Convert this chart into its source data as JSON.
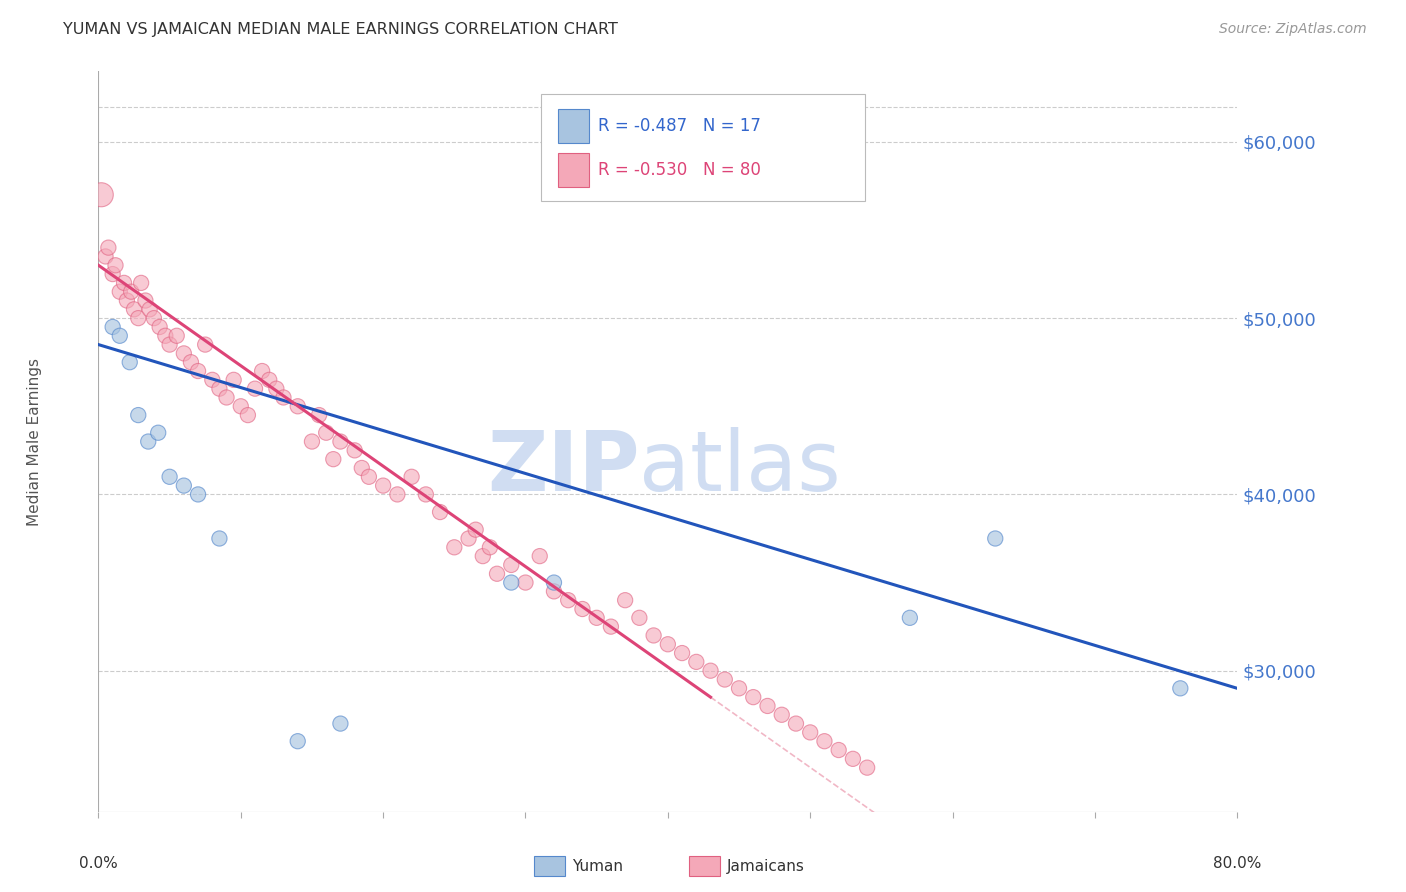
{
  "title": "YUMAN VS JAMAICAN MEDIAN MALE EARNINGS CORRELATION CHART",
  "source": "Source: ZipAtlas.com",
  "ylabel": "Median Male Earnings",
  "yticks": [
    30000,
    40000,
    50000,
    60000
  ],
  "ytick_labels": [
    "$30,000",
    "$40,000",
    "$50,000",
    "$60,000"
  ],
  "xlim": [
    0.0,
    80.0
  ],
  "ylim": [
    22000,
    64000
  ],
  "yuman_R": "-0.487",
  "yuman_N": "17",
  "jamaican_R": "-0.530",
  "jamaican_N": "80",
  "blue_color": "#A8C4E0",
  "pink_color": "#F4A8B8",
  "blue_edge_color": "#5588CC",
  "pink_edge_color": "#E06080",
  "blue_line_color": "#2255BB",
  "pink_line_color": "#DD4477",
  "watermark_zip_color": "#C8D8F0",
  "watermark_atlas_color": "#C8D8F0",
  "yuman_x": [
    1.0,
    1.5,
    2.2,
    2.8,
    3.5,
    4.2,
    5.0,
    6.0,
    7.0,
    8.5,
    14.0,
    17.0,
    29.0,
    32.0,
    57.0,
    63.0,
    76.0
  ],
  "yuman_y": [
    49500,
    49000,
    47500,
    44500,
    43000,
    43500,
    41000,
    40500,
    40000,
    37500,
    26000,
    27000,
    35000,
    35000,
    33000,
    37500,
    29000
  ],
  "yuman_sizes": [
    120,
    120,
    120,
    120,
    120,
    120,
    120,
    120,
    120,
    120,
    120,
    120,
    120,
    120,
    120,
    120,
    120
  ],
  "jamaican_x": [
    0.2,
    0.5,
    0.7,
    1.0,
    1.2,
    1.5,
    1.8,
    2.0,
    2.3,
    2.5,
    2.8,
    3.0,
    3.3,
    3.6,
    3.9,
    4.3,
    4.7,
    5.0,
    5.5,
    6.0,
    6.5,
    7.0,
    7.5,
    8.0,
    8.5,
    9.0,
    9.5,
    10.0,
    10.5,
    11.0,
    11.5,
    12.0,
    12.5,
    13.0,
    14.0,
    15.0,
    15.5,
    16.0,
    16.5,
    17.0,
    18.0,
    18.5,
    19.0,
    20.0,
    21.0,
    22.0,
    23.0,
    24.0,
    25.0,
    26.0,
    26.5,
    27.0,
    27.5,
    28.0,
    29.0,
    30.0,
    31.0,
    32.0,
    33.0,
    34.0,
    35.0,
    36.0,
    37.0,
    38.0,
    39.0,
    40.0,
    41.0,
    42.0,
    43.0,
    44.0,
    45.0,
    46.0,
    47.0,
    48.0,
    49.0,
    50.0,
    51.0,
    52.0,
    53.0,
    54.0
  ],
  "jamaican_y": [
    57000,
    53500,
    54000,
    52500,
    53000,
    51500,
    52000,
    51000,
    51500,
    50500,
    50000,
    52000,
    51000,
    50500,
    50000,
    49500,
    49000,
    48500,
    49000,
    48000,
    47500,
    47000,
    48500,
    46500,
    46000,
    45500,
    46500,
    45000,
    44500,
    46000,
    47000,
    46500,
    46000,
    45500,
    45000,
    43000,
    44500,
    43500,
    42000,
    43000,
    42500,
    41500,
    41000,
    40500,
    40000,
    41000,
    40000,
    39000,
    37000,
    37500,
    38000,
    36500,
    37000,
    35500,
    36000,
    35000,
    36500,
    34500,
    34000,
    33500,
    33000,
    32500,
    34000,
    33000,
    32000,
    31500,
    31000,
    30500,
    30000,
    29500,
    29000,
    28500,
    28000,
    27500,
    27000,
    26500,
    26000,
    25500,
    25000,
    24500
  ],
  "jamaican_sizes": [
    300,
    120,
    120,
    120,
    120,
    120,
    120,
    120,
    120,
    120,
    120,
    120,
    120,
    120,
    120,
    120,
    120,
    120,
    120,
    120,
    120,
    120,
    120,
    120,
    120,
    120,
    120,
    120,
    120,
    120,
    120,
    120,
    120,
    120,
    120,
    120,
    120,
    120,
    120,
    120,
    120,
    120,
    120,
    120,
    120,
    120,
    120,
    120,
    120,
    120,
    120,
    120,
    120,
    120,
    120,
    120,
    120,
    120,
    120,
    120,
    120,
    120,
    120,
    120,
    120,
    120,
    120,
    120,
    120,
    120,
    120,
    120,
    120,
    120,
    120,
    120,
    120,
    120,
    120,
    120
  ],
  "blue_line_x0": 0.0,
  "blue_line_y0": 48500,
  "blue_line_x1": 80.0,
  "blue_line_y1": 29000,
  "pink_line_x0": 0.0,
  "pink_line_y0": 53000,
  "pink_line_x1": 43.0,
  "pink_line_y1": 28500,
  "pink_dash_x0": 43.0,
  "pink_dash_x1": 80.0
}
